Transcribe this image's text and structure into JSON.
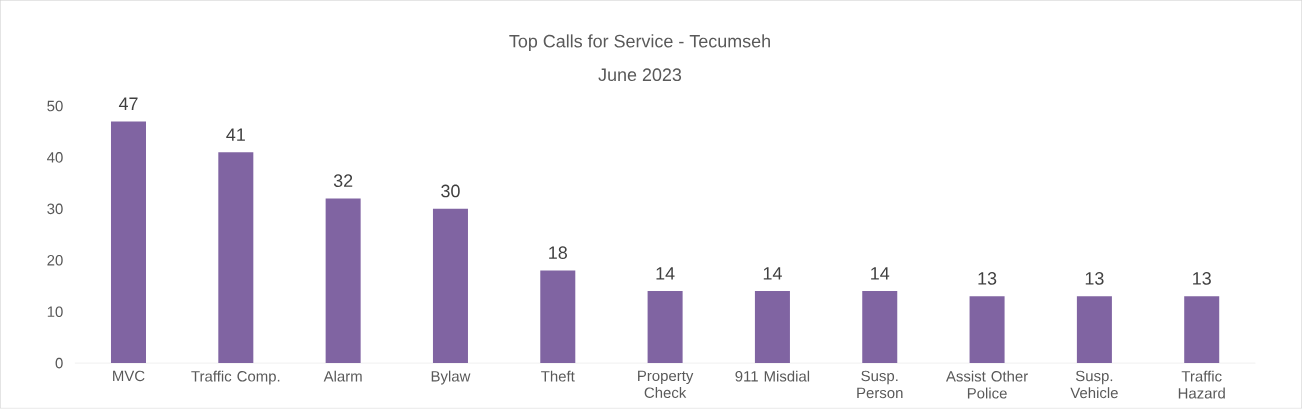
{
  "chart_data": {
    "type": "bar",
    "title": "Top Calls for Service - Tecumseh",
    "subtitle": "June 2023",
    "categories": [
      "MVC",
      "Traffic Comp.",
      "Alarm",
      "Bylaw",
      "Theft",
      "Property Check",
      "911 Misdial",
      "Susp. Person",
      "Assist Other Police",
      "Susp. Vehicle",
      "Traffic Hazard"
    ],
    "values": [
      47,
      41,
      32,
      30,
      18,
      14,
      14,
      14,
      13,
      13,
      13
    ],
    "color": "#8064a2",
    "ylim": [
      0,
      50
    ],
    "yticks": [
      0,
      10,
      20,
      30,
      40,
      50
    ],
    "data_labels": true
  }
}
